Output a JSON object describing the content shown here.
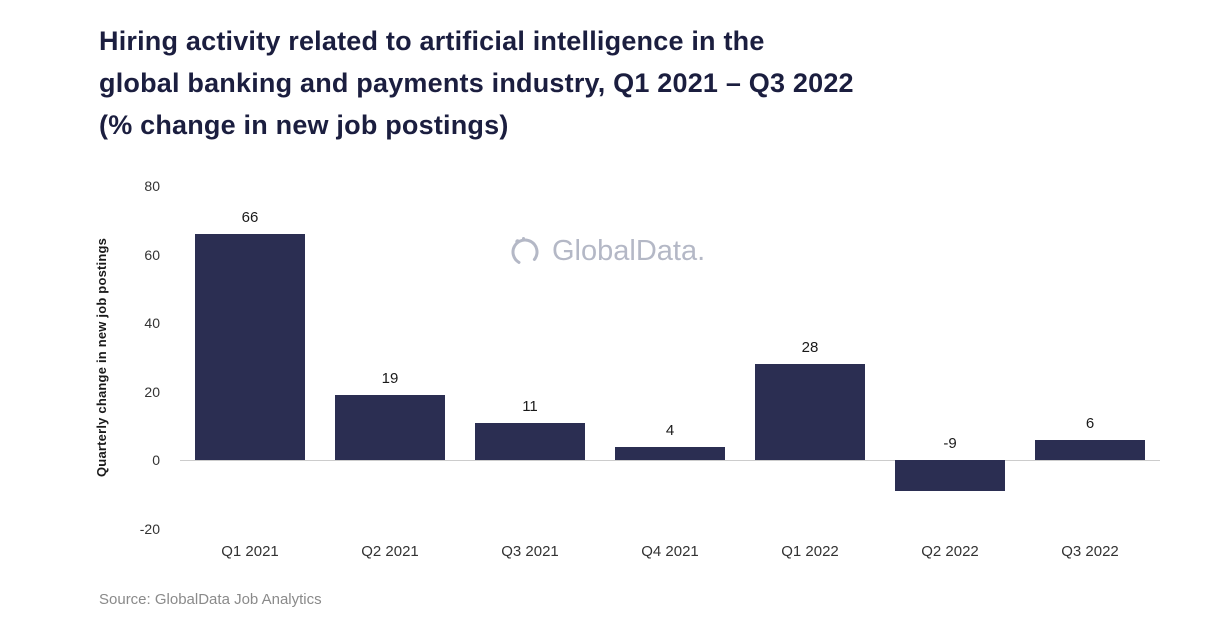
{
  "title_lines": [
    "Hiring activity related to artificial intelligence in the",
    "global banking and payments industry, Q1 2021 – Q3 2022",
    "(% change in new job postings)"
  ],
  "watermark": "GlobalData.",
  "source": "Source: GlobalData Job Analytics",
  "chart_data": {
    "type": "bar",
    "categories": [
      "Q1 2021",
      "Q2 2021",
      "Q3 2021",
      "Q4 2021",
      "Q1 2022",
      "Q2 2022",
      "Q3 2022"
    ],
    "values": [
      66,
      19,
      11,
      4,
      28,
      -9,
      6
    ],
    "title": "Hiring activity related to artificial intelligence in the global banking and payments industry, Q1 2021 – Q3 2022 (% change in new job postings)",
    "xlabel": "",
    "ylabel": "Quarterly change in new job postings",
    "ylim": [
      -20,
      80
    ],
    "yticks": [
      80,
      60,
      40,
      20,
      0,
      -20
    ],
    "bar_color": "#2b2e52",
    "grid": false,
    "legend": false
  }
}
